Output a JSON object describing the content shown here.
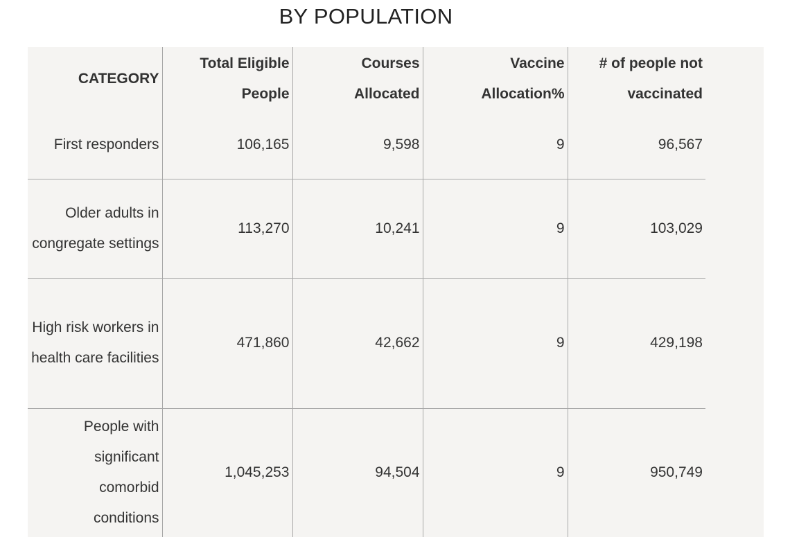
{
  "title": "BY POPULATION",
  "table": {
    "headers": [
      "CATEGORY",
      "Total Eligible People",
      "Courses Allocated",
      "Vaccine Allocation%",
      "# of people not vaccinated"
    ],
    "rows": [
      [
        "First responders",
        "106,165",
        "9,598",
        "9",
        "96,567"
      ],
      [
        "Older adults in congregate settings",
        "113,270",
        "10,241",
        "9",
        "103,029"
      ],
      [
        "High risk workers in health care facilities",
        "471,860",
        "42,662",
        "9",
        "429,198"
      ],
      [
        "People with significant comorbid conditions",
        "1,045,253",
        "94,504",
        "9",
        "950,749"
      ]
    ]
  }
}
